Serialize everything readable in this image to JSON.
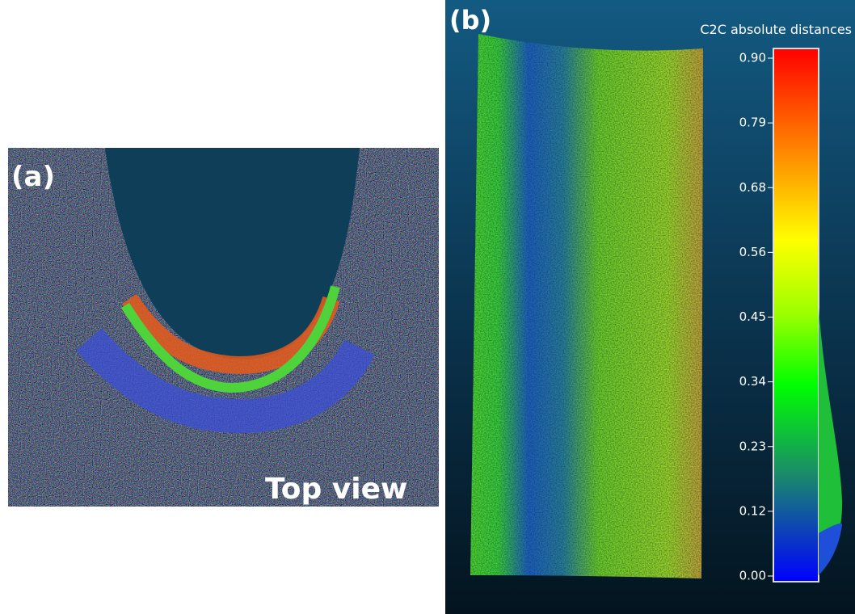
{
  "panel_a": {
    "label": "(a)",
    "caption": "Top view"
  },
  "panel_b": {
    "label": "(b)",
    "colorbar": {
      "title": "C2C absolute distances",
      "ticks": [
        "0.90",
        "0.79",
        "0.68",
        "0.56",
        "0.45",
        "0.34",
        "0.23",
        "0.12",
        "0.00"
      ]
    }
  }
}
